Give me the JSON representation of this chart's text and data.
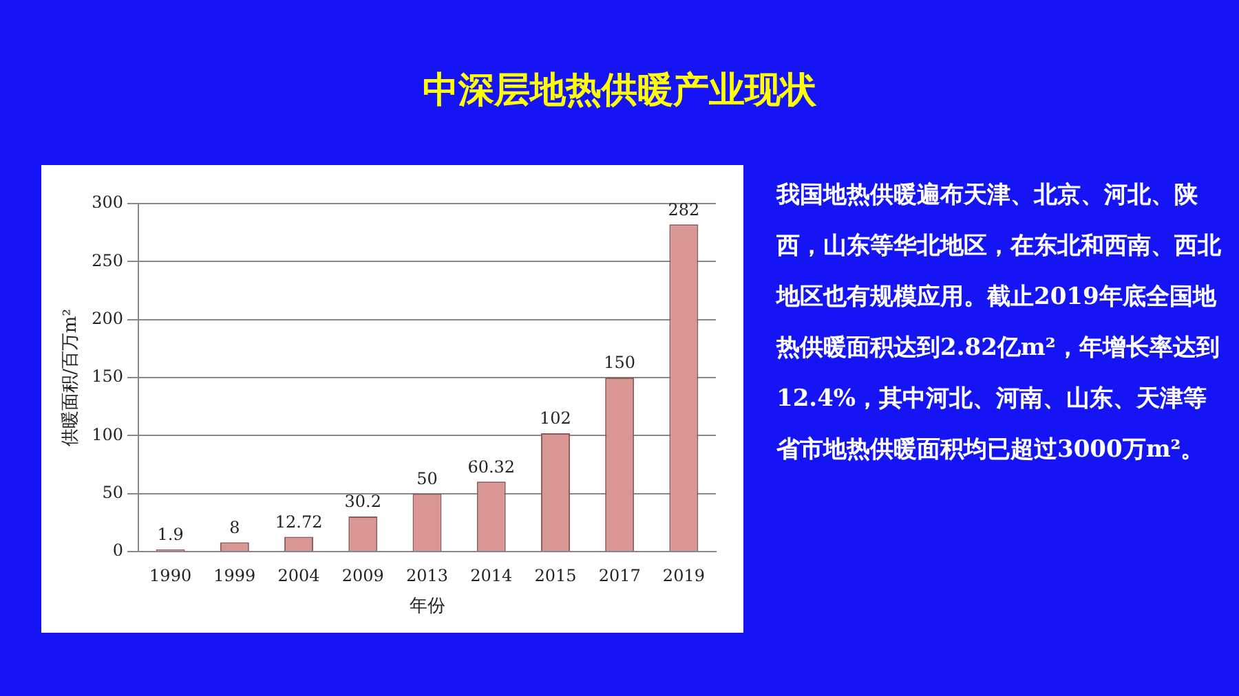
{
  "chart_data": {
    "type": "bar",
    "title": "中深层地热供暖产业现状",
    "xlabel": "年份",
    "ylabel": "供暖面积/百万m²",
    "categories": [
      "1990",
      "1999",
      "2004",
      "2009",
      "2013",
      "2014",
      "2015",
      "2017",
      "2019"
    ],
    "values": [
      1.9,
      8,
      12.72,
      30.2,
      50,
      60.32,
      102,
      150,
      282
    ],
    "color": "#d99694",
    "ylim": [
      0,
      300
    ],
    "yticks": [
      0,
      50,
      100,
      150,
      200,
      250,
      300
    ],
    "grid": "y",
    "data_labels": true,
    "legend": false,
    "annotations": [
      "我国地热供暖遍布天津、北京、河北、陕西，山东等华北地区，在东北和西南、西北地区也有规模应用。截止2019年底全国地热供暖面积达到2.82亿m²，年增长率达到12.4%，其中河北、河南、山东、天津等省市地热供暖面积均已超过3000万m²。"
    ]
  }
}
